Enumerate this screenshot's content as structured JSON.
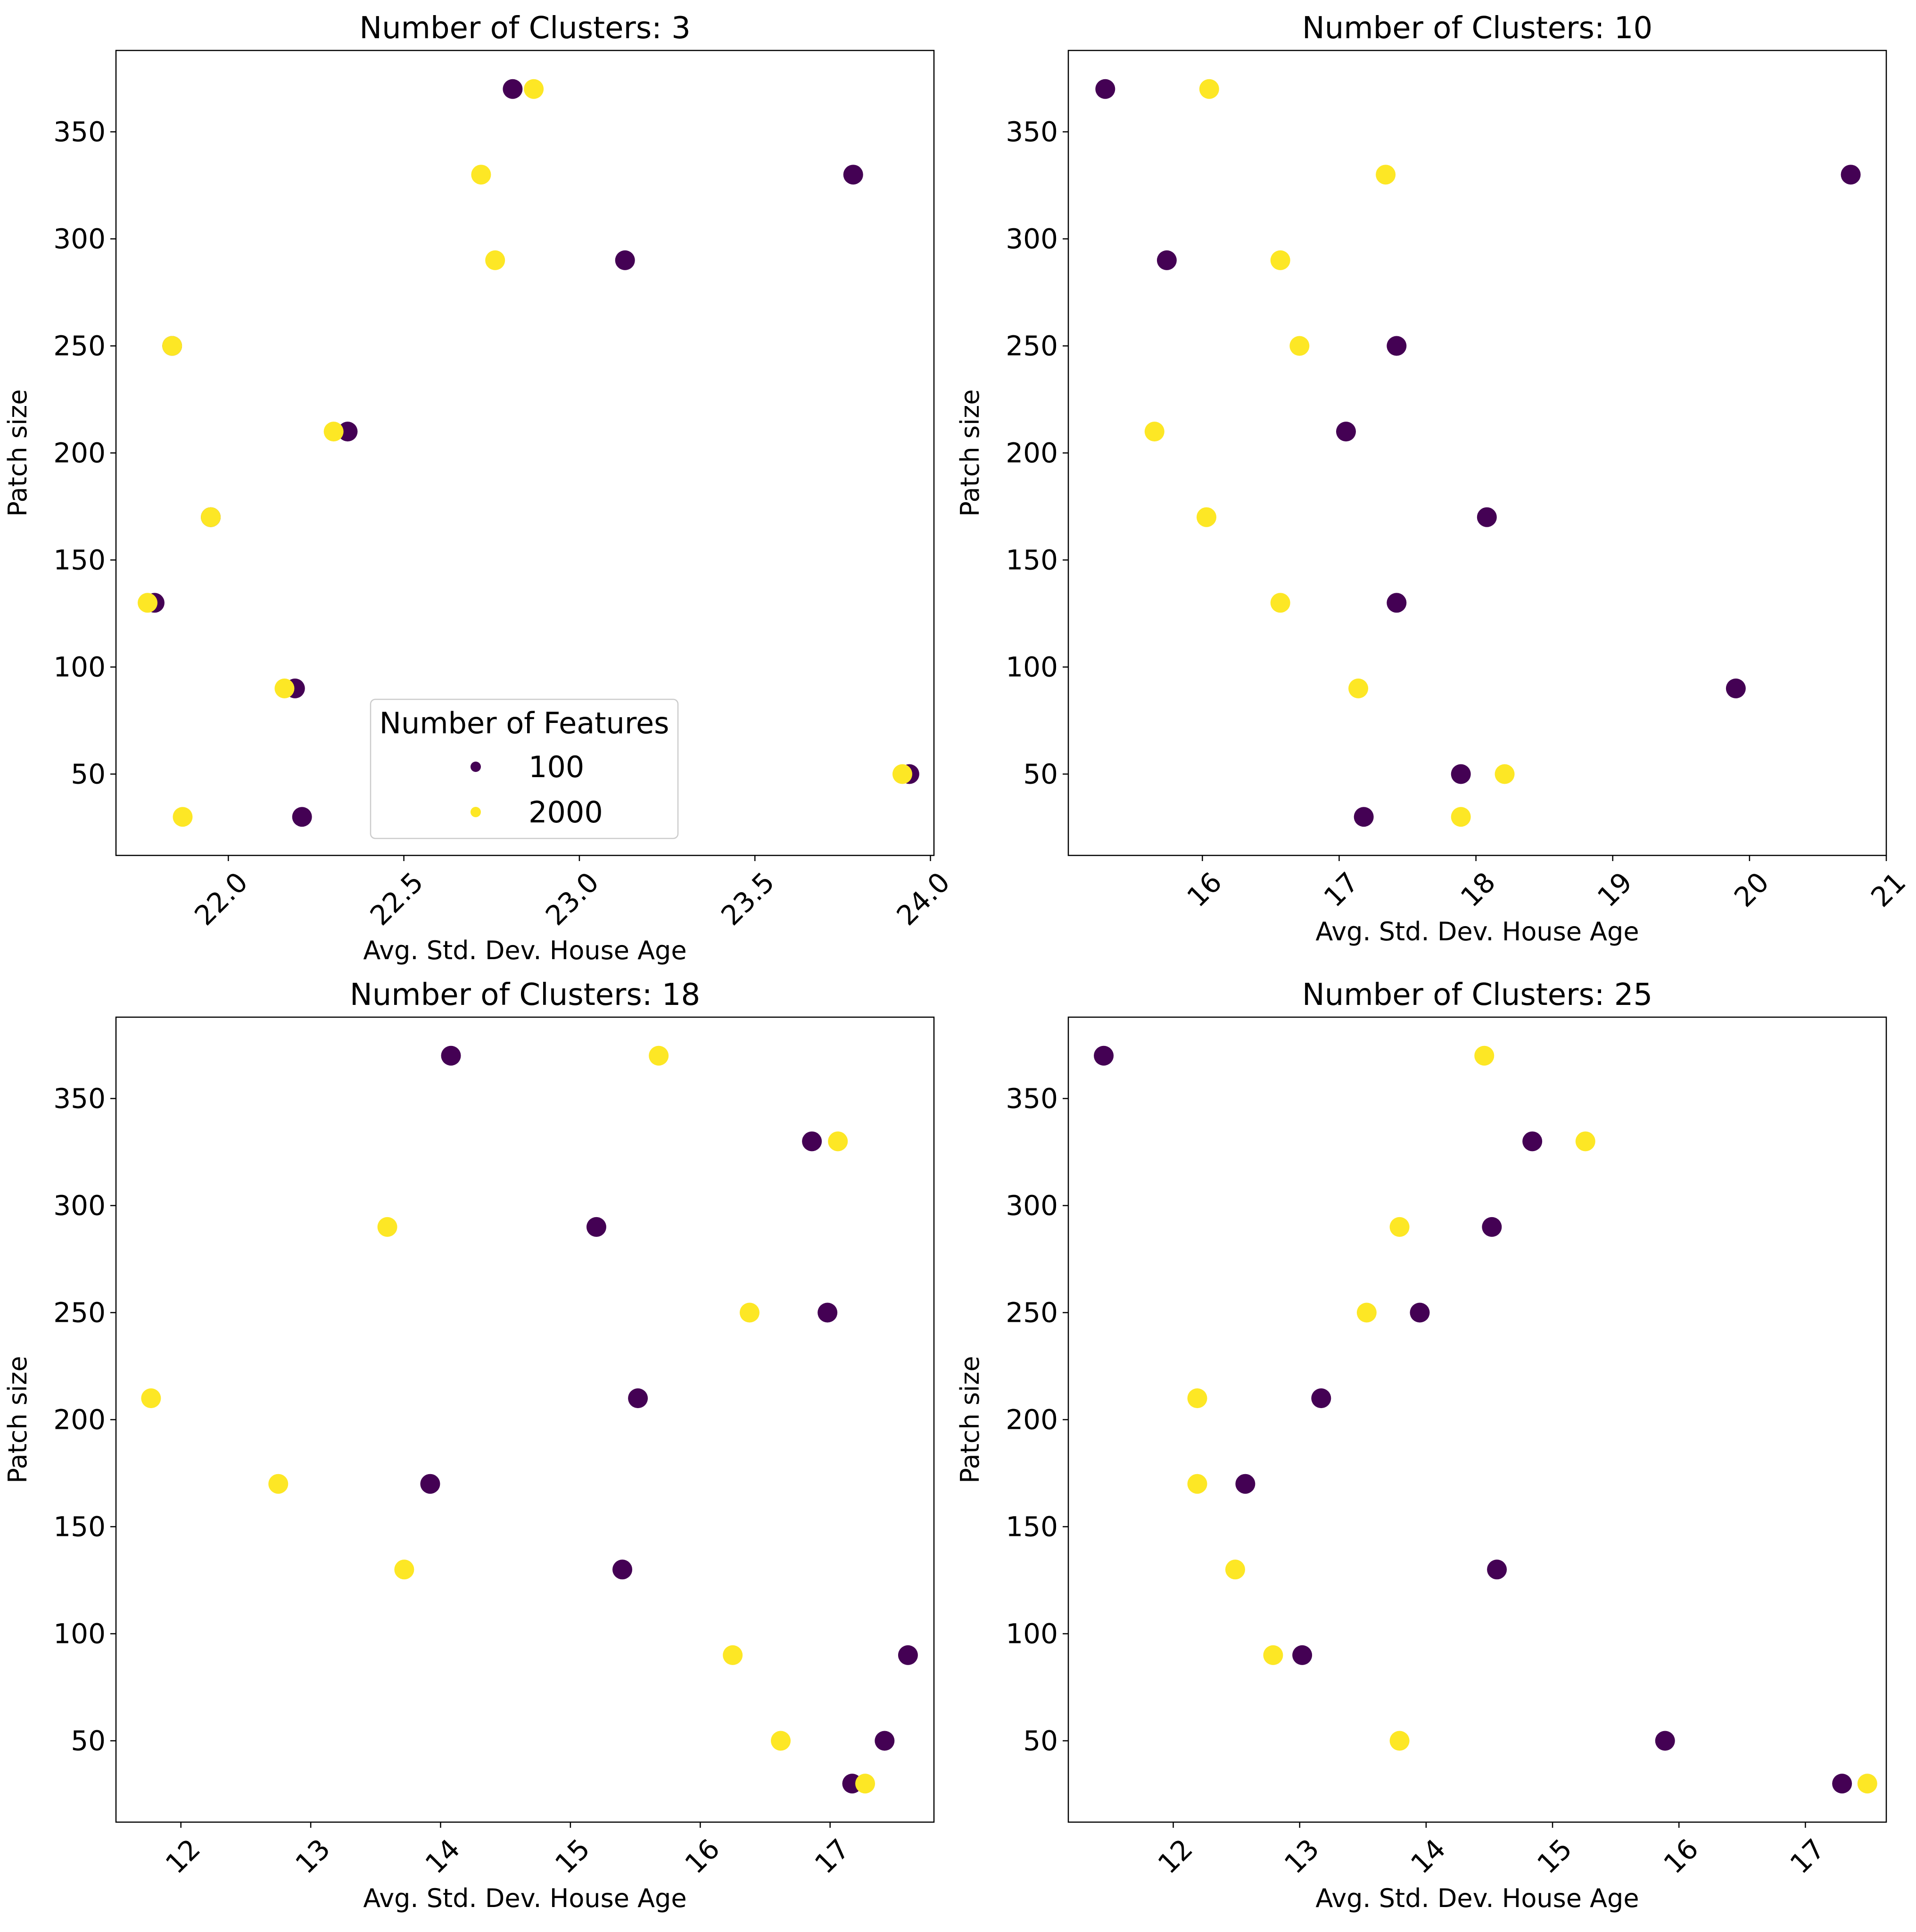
{
  "colors": {
    "100": "#440154",
    "2000": "#fde725",
    "legend_edge": "#cccccc"
  },
  "legend": {
    "title": "Number of Features",
    "entries": [
      "100",
      "2000"
    ],
    "location": "lower-center of first subplot"
  },
  "chart_data": [
    {
      "type": "scatter",
      "title": "Number of Clusters: 3",
      "xlabel": "Avg. Std. Dev. House Age",
      "ylabel": "Patch size",
      "xlim": [
        21.68,
        24.01
      ],
      "ylim": [
        12,
        388
      ],
      "xticks": [
        22.0,
        22.5,
        23.0,
        23.5,
        24.0
      ],
      "xtick_labels": [
        "22.0",
        "22.5",
        "23.0",
        "23.5",
        "24.0"
      ],
      "yticks": [
        50,
        100,
        150,
        200,
        250,
        300,
        350
      ],
      "ytick_labels": [
        "50",
        "100",
        "150",
        "200",
        "250",
        "300",
        "350"
      ],
      "series": [
        {
          "name": "100",
          "points": [
            [
              22.21,
              30
            ],
            [
              23.94,
              50
            ],
            [
              22.19,
              90
            ],
            [
              21.79,
              130
            ],
            [
              21.95,
              170
            ],
            [
              22.34,
              210
            ],
            [
              21.84,
              250
            ],
            [
              23.13,
              290
            ],
            [
              23.78,
              330
            ],
            [
              22.81,
              370
            ]
          ]
        },
        {
          "name": "2000",
          "points": [
            [
              21.87,
              30
            ],
            [
              23.92,
              50
            ],
            [
              22.16,
              90
            ],
            [
              21.77,
              130
            ],
            [
              21.95,
              170
            ],
            [
              22.3,
              210
            ],
            [
              21.84,
              250
            ],
            [
              22.76,
              290
            ],
            [
              22.72,
              330
            ],
            [
              22.87,
              370
            ]
          ]
        }
      ]
    },
    {
      "type": "scatter",
      "title": "Number of Clusters: 10",
      "xlabel": "Avg. Std. Dev. House Age",
      "ylabel": "Patch size",
      "xlim": [
        15.02,
        21.0
      ],
      "ylim": [
        12,
        388
      ],
      "xticks": [
        16,
        17,
        18,
        19,
        20,
        21
      ],
      "xtick_labels": [
        "16",
        "17",
        "18",
        "19",
        "20",
        "21"
      ],
      "yticks": [
        50,
        100,
        150,
        200,
        250,
        300,
        350
      ],
      "ytick_labels": [
        "50",
        "100",
        "150",
        "200",
        "250",
        "300",
        "350"
      ],
      "series": [
        {
          "name": "100",
          "points": [
            [
              17.18,
              30
            ],
            [
              17.89,
              50
            ],
            [
              19.9,
              90
            ],
            [
              17.42,
              130
            ],
            [
              18.08,
              170
            ],
            [
              17.05,
              210
            ],
            [
              17.42,
              250
            ],
            [
              15.74,
              290
            ],
            [
              20.74,
              330
            ],
            [
              15.29,
              370
            ]
          ]
        },
        {
          "name": "2000",
          "points": [
            [
              17.89,
              30
            ],
            [
              18.21,
              50
            ],
            [
              17.14,
              90
            ],
            [
              16.57,
              130
            ],
            [
              16.03,
              170
            ],
            [
              15.65,
              210
            ],
            [
              16.71,
              250
            ],
            [
              16.57,
              290
            ],
            [
              17.34,
              330
            ],
            [
              16.05,
              370
            ]
          ]
        }
      ]
    },
    {
      "type": "scatter",
      "title": "Number of Clusters: 18",
      "xlabel": "Avg. Std. Dev. House Age",
      "ylabel": "Patch size",
      "xlim": [
        11.5,
        17.8
      ],
      "ylim": [
        12,
        388
      ],
      "xticks": [
        12,
        13,
        14,
        15,
        16,
        17
      ],
      "xtick_labels": [
        "12",
        "13",
        "14",
        "15",
        "16",
        "17"
      ],
      "yticks": [
        50,
        100,
        150,
        200,
        250,
        300,
        350
      ],
      "ytick_labels": [
        "50",
        "100",
        "150",
        "200",
        "250",
        "300",
        "350"
      ],
      "series": [
        {
          "name": "100",
          "points": [
            [
              17.17,
              30
            ],
            [
              17.42,
              50
            ],
            [
              17.6,
              90
            ],
            [
              15.4,
              130
            ],
            [
              13.92,
              170
            ],
            [
              15.52,
              210
            ],
            [
              16.98,
              250
            ],
            [
              15.2,
              290
            ],
            [
              16.86,
              330
            ],
            [
              14.08,
              370
            ]
          ]
        },
        {
          "name": "2000",
          "points": [
            [
              17.27,
              30
            ],
            [
              16.62,
              50
            ],
            [
              16.25,
              90
            ],
            [
              13.72,
              130
            ],
            [
              12.75,
              170
            ],
            [
              11.77,
              210
            ],
            [
              16.38,
              250
            ],
            [
              13.59,
              290
            ],
            [
              17.06,
              330
            ],
            [
              15.68,
              370
            ]
          ]
        }
      ]
    },
    {
      "type": "scatter",
      "title": "Number of Clusters: 25",
      "xlabel": "Avg. Std. Dev. House Age",
      "ylabel": "Patch size",
      "xlim": [
        11.17,
        17.64
      ],
      "ylim": [
        12,
        388
      ],
      "xticks": [
        12,
        13,
        14,
        15,
        16,
        17
      ],
      "xtick_labels": [
        "12",
        "13",
        "14",
        "15",
        "16",
        "17"
      ],
      "yticks": [
        50,
        100,
        150,
        200,
        250,
        300,
        350
      ],
      "ytick_labels": [
        "50",
        "100",
        "150",
        "200",
        "250",
        "300",
        "350"
      ],
      "series": [
        {
          "name": "100",
          "points": [
            [
              17.29,
              30
            ],
            [
              15.89,
              50
            ],
            [
              13.02,
              90
            ],
            [
              14.56,
              130
            ],
            [
              12.57,
              170
            ],
            [
              13.17,
              210
            ],
            [
              13.95,
              250
            ],
            [
              14.52,
              290
            ],
            [
              14.84,
              330
            ],
            [
              11.45,
              370
            ]
          ]
        },
        {
          "name": "2000",
          "points": [
            [
              17.49,
              30
            ],
            [
              13.79,
              50
            ],
            [
              12.79,
              90
            ],
            [
              12.49,
              130
            ],
            [
              12.19,
              170
            ],
            [
              12.19,
              210
            ],
            [
              13.53,
              250
            ],
            [
              13.79,
              290
            ],
            [
              15.26,
              330
            ],
            [
              14.46,
              370
            ]
          ]
        }
      ]
    }
  ]
}
